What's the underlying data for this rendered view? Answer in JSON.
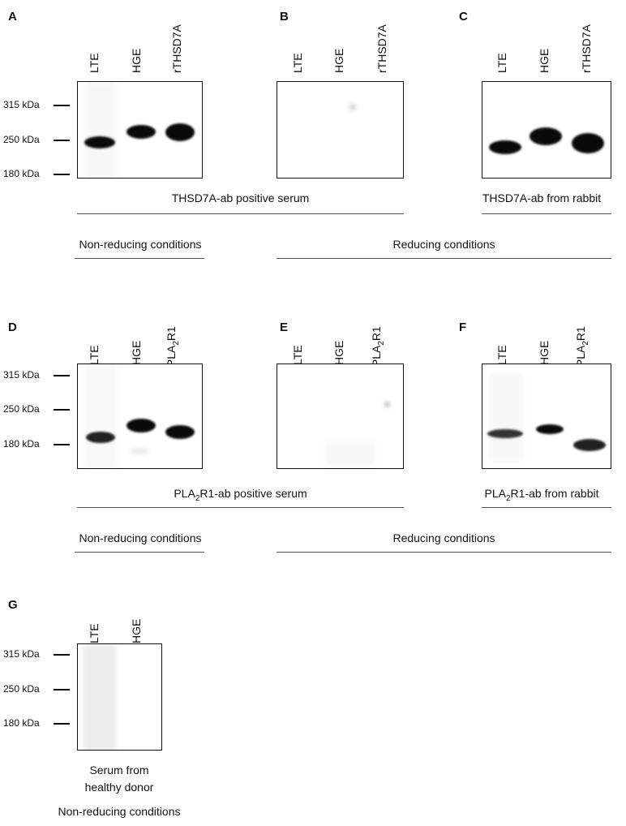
{
  "panels": {
    "A": {
      "letter": "A",
      "lanes": [
        "LTE",
        "HGE",
        "rTHSD7A"
      ]
    },
    "B": {
      "letter": "B",
      "lanes": [
        "LTE",
        "HGE",
        "rTHSD7A"
      ]
    },
    "C": {
      "letter": "C",
      "lanes": [
        "LTE",
        "HGE",
        "rTHSD7A"
      ]
    },
    "D": {
      "letter": "D",
      "lanes": [
        "LTE",
        "HGE"
      ],
      "lane3_pre": "rPLA",
      "lane3_sub": "2",
      "lane3_post": "R1"
    },
    "E": {
      "letter": "E",
      "lanes": [
        "LTE",
        "HGE"
      ],
      "lane3_pre": "rPLA",
      "lane3_sub": "2",
      "lane3_post": "R1"
    },
    "F": {
      "letter": "F",
      "lanes": [
        "LTE",
        "HGE"
      ],
      "lane3_pre": "rPLA",
      "lane3_sub": "2",
      "lane3_post": "R1"
    },
    "G": {
      "letter": "G",
      "lanes": [
        "LTE",
        "HGE"
      ]
    }
  },
  "markers": [
    "315 kDa",
    "250 kDa",
    "180 kDa"
  ],
  "captions": {
    "ab_thsd7a_serum": "THSD7A-ab positive serum",
    "ab_thsd7a_rabbit": "THSD7A-ab from rabbit",
    "pla_serum_pre": "PLA",
    "pla_serum_sub": "2",
    "pla_serum_post": "R1-ab positive serum",
    "pla_rabbit_pre": "PLA",
    "pla_rabbit_sub": "2",
    "pla_rabbit_post": "R1-ab from rabbit",
    "non_reducing": "Non-reducing conditions",
    "reducing": "Reducing conditions",
    "healthy_1": "Serum from",
    "healthy_2": "healthy donor",
    "healthy_3": "Non-reducing conditions"
  }
}
